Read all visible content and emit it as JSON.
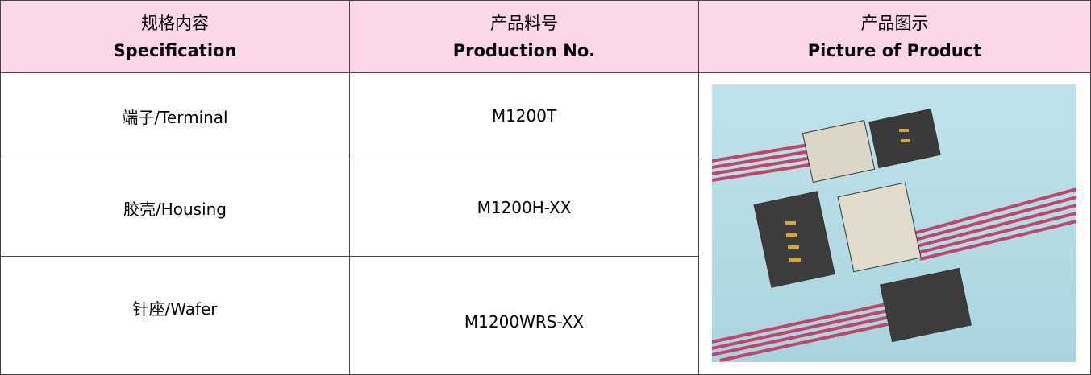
{
  "table": {
    "header": [
      [
        "规格内容",
        "Specification"
      ],
      [
        "产品料号",
        "Production No."
      ],
      [
        "产品图示",
        "Picture of Product"
      ]
    ],
    "rows": [
      [
        "端子/Terminal",
        "M1200T"
      ],
      [
        "胶壳/Housing",
        "M1200H-XX"
      ],
      [
        "针座/Wafer",
        "M1200WRS-XX"
      ]
    ]
  }
}
